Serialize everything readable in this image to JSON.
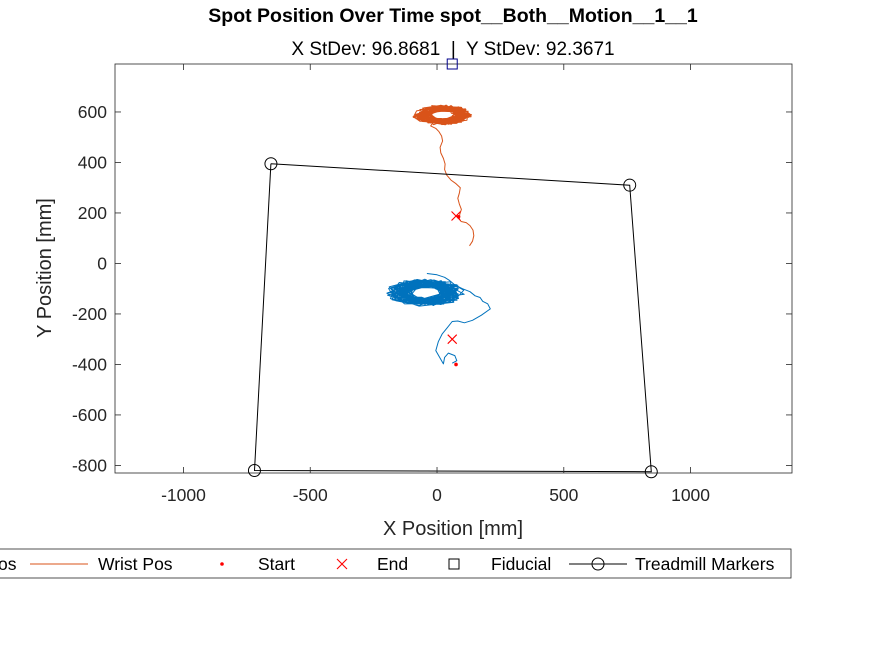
{
  "chart_data": {
    "type": "line",
    "title": "Spot Position Over Time spot__Both__Motion__1__1",
    "subtitle": "X StDev: 96.8681  |  Y StDev: 92.3671",
    "xlabel": "X Position [mm]",
    "ylabel": "Y Position [mm]",
    "xlim": [
      -1270,
      1400
    ],
    "ylim": [
      -830,
      790
    ],
    "xticks": [
      -1000,
      -500,
      0,
      500,
      1000
    ],
    "xtick_labels": [
      "-1000",
      "-500",
      "0",
      "500",
      "1000"
    ],
    "yticks": [
      -800,
      -600,
      -400,
      -200,
      0,
      200,
      400,
      600
    ],
    "ytick_labels": [
      "-800",
      "-600",
      "-400",
      "-200",
      "0",
      "200",
      "400",
      "600"
    ],
    "grid": false,
    "legend_position": "bottom-outside",
    "legend": [
      "os",
      "Wrist Pos",
      "Start",
      "End",
      "Fiducial",
      "Treadmill Markers"
    ],
    "colors": {
      "ankle": "#0072BD",
      "wrist": "#D95319",
      "markers": "#FF0000",
      "fiducial": "#00008B",
      "treadmill": "#000000",
      "axis": "#262626"
    },
    "series": [
      {
        "name": "Wrist Pos",
        "color": "#D95319",
        "points": [
          [
            128,
            70
          ],
          [
            140,
            88
          ],
          [
            145,
            110
          ],
          [
            142,
            132
          ],
          [
            130,
            150
          ],
          [
            115,
            162
          ],
          [
            95,
            166
          ],
          [
            88,
            176
          ],
          [
            90,
            195
          ],
          [
            96,
            214
          ],
          [
            88,
            236
          ],
          [
            82,
            258
          ],
          [
            88,
            278
          ],
          [
            92,
            300
          ],
          [
            75,
            316
          ],
          [
            55,
            330
          ],
          [
            38,
            350
          ],
          [
            30,
            372
          ],
          [
            32,
            394
          ],
          [
            25,
            416
          ],
          [
            15,
            438
          ],
          [
            12,
            460
          ],
          [
            22,
            485
          ],
          [
            18,
            505
          ],
          [
            8,
            522
          ],
          [
            -5,
            535
          ],
          [
            -25,
            545
          ],
          [
            -18,
            555
          ]
        ]
      },
      {
        "name": "Wrist Pos (cluster)",
        "color": "#D95319",
        "cluster": {
          "cx": 20,
          "cy": 588,
          "rx": 118,
          "ry": 40,
          "loops": 42
        }
      },
      {
        "name": "os",
        "color": "#0072BD",
        "points": [
          [
            60,
            -395
          ],
          [
            78,
            -385
          ],
          [
            70,
            -365
          ],
          [
            45,
            -355
          ],
          [
            30,
            -372
          ],
          [
            25,
            -398
          ],
          [
            15,
            -380
          ],
          [
            -5,
            -345
          ],
          [
            5,
            -310
          ],
          [
            20,
            -280
          ],
          [
            40,
            -255
          ],
          [
            60,
            -230
          ],
          [
            82,
            -228
          ],
          [
            108,
            -235
          ],
          [
            140,
            -225
          ],
          [
            175,
            -205
          ],
          [
            210,
            -180
          ],
          [
            200,
            -160
          ],
          [
            180,
            -150
          ],
          [
            170,
            -135
          ],
          [
            150,
            -128
          ],
          [
            130,
            -112
          ],
          [
            100,
            -100
          ],
          [
            70,
            -85
          ],
          [
            50,
            -68
          ],
          [
            30,
            -55
          ],
          [
            0,
            -45
          ],
          [
            -40,
            -40
          ]
        ]
      },
      {
        "name": "os (cluster)",
        "color": "#0072BD",
        "cluster": {
          "cx": -45,
          "cy": -115,
          "rx": 160,
          "ry": 55,
          "loops": 40
        }
      }
    ],
    "start_points": [
      [
        85,
        185
      ],
      [
        75,
        -400
      ]
    ],
    "end_points": [
      [
        75,
        188
      ],
      [
        60,
        -300
      ]
    ],
    "fiducial": [
      60,
      790
    ],
    "treadmill_markers": [
      [
        -655,
        395
      ],
      [
        760,
        310
      ],
      [
        845,
        -825
      ],
      [
        -720,
        -820
      ]
    ]
  }
}
